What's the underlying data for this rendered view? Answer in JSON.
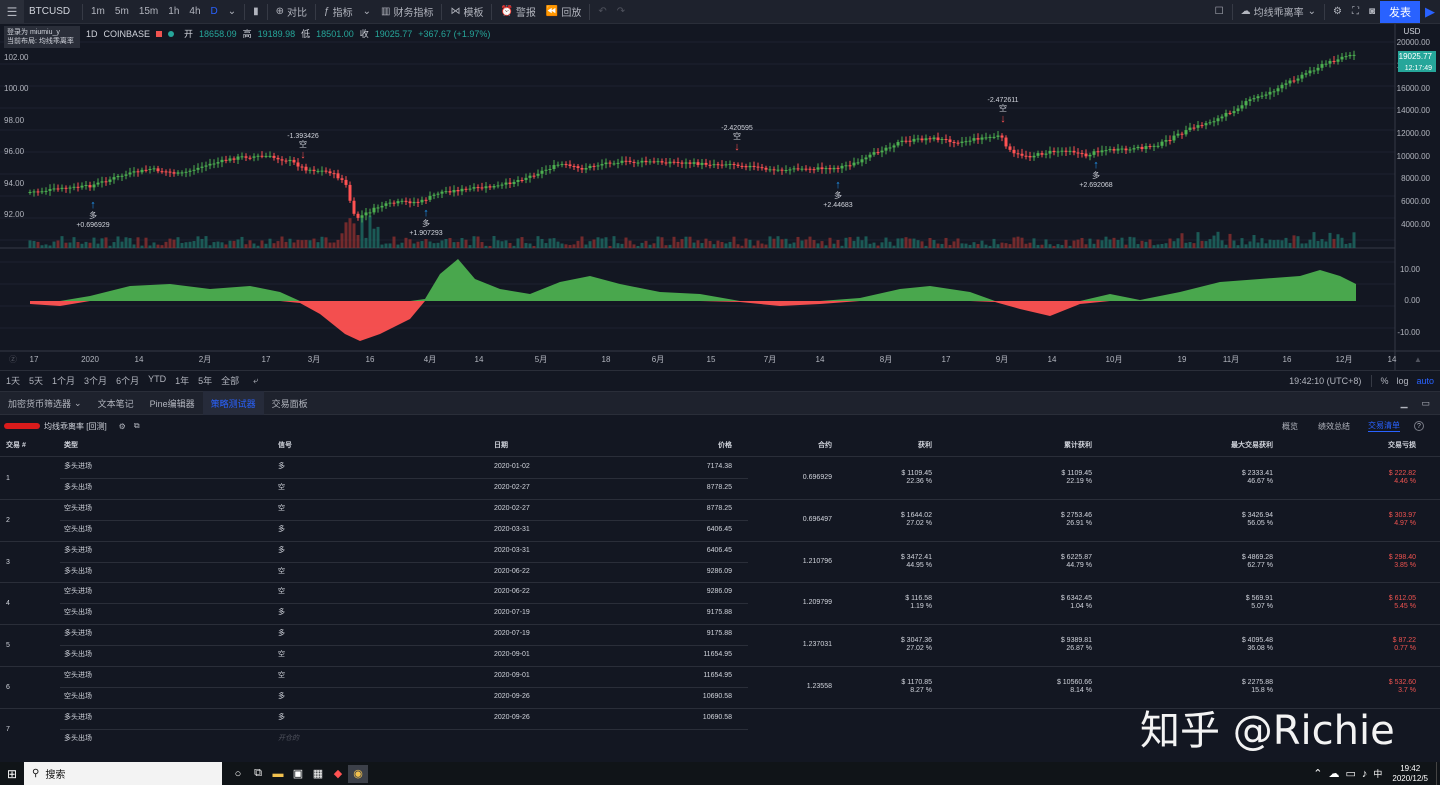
{
  "toolbar": {
    "symbol": "BTCUSD",
    "resolutions": [
      "1m",
      "5m",
      "15m",
      "1h",
      "4h",
      "D"
    ],
    "compare": "对比",
    "indicators": "指标",
    "financials": "财务指标",
    "templates": "模板",
    "alerts": "警报",
    "replay": "回放",
    "layout_name": "均线乖离率",
    "publish": "发表"
  },
  "login": {
    "line1": "登录为 miumiu_y",
    "line2": "当前布局: 均线乖离率"
  },
  "legend": {
    "interval": "1D",
    "exchange": "COINBASE",
    "o_label": "开",
    "o": "18658.09",
    "h_label": "高",
    "h": "19189.98",
    "l_label": "低",
    "l": "18501.00",
    "c_label": "收",
    "c": "19025.77",
    "chg": "+367.67 (+1.97%)"
  },
  "price_axis": {
    "currency": "USD",
    "current_price": "19025.77",
    "countdown": "12:17:49",
    "right_ticks": [
      "20000.00",
      "18000.00",
      "16000.00",
      "14000.00",
      "12000.00",
      "10000.00",
      "8000.00",
      "6000.00",
      "4000.00"
    ],
    "left_ticks": [
      "102.00",
      "100.00",
      "98.00",
      "96.00",
      "94.00",
      "92.00"
    ],
    "osc_ticks": [
      "10.00",
      "0.00",
      "-10.00"
    ]
  },
  "time_axis": [
    "17",
    "2020",
    "14",
    "2月",
    "17",
    "3月",
    "16",
    "4月",
    "14",
    "5月",
    "18",
    "6月",
    "15",
    "7月",
    "14",
    "8月",
    "17",
    "9月",
    "14",
    "10月",
    "19",
    "11月",
    "16",
    "12月",
    "14"
  ],
  "signals": [
    {
      "value": "+0.696929",
      "side": "多",
      "dir": "long"
    },
    {
      "value": "-1.393426",
      "side": "空",
      "dir": "short"
    },
    {
      "value": "+1.907293",
      "side": "多",
      "dir": "long"
    },
    {
      "value": "-2.420595",
      "side": "空",
      "dir": "short"
    },
    {
      "value": "+2.44683",
      "side": "多",
      "dir": "long"
    },
    {
      "value": "-2.472611",
      "side": "空",
      "dir": "short"
    },
    {
      "value": "+2.692068",
      "side": "多",
      "dir": "long"
    }
  ],
  "timeframes": {
    "ranges": [
      "1天",
      "5天",
      "1个月",
      "3个月",
      "6个月",
      "YTD",
      "1年",
      "5年",
      "全部"
    ],
    "clock": "19:42:10 (UTC+8)",
    "pct": "%",
    "log": "log",
    "auto": "auto"
  },
  "bottom_tabs": [
    "加密货币筛选器",
    "文本笔记",
    "Pine编辑器",
    "策略测试器",
    "交易面板"
  ],
  "strategy": {
    "name": "均线乖离率 [回测]",
    "views": [
      "概览",
      "绩效总结",
      "交易清单"
    ]
  },
  "table": {
    "headers": [
      "交易 #",
      "类型",
      "信号",
      "日期",
      "价格",
      "合约",
      "获利",
      "累计获利",
      "最大交易获利",
      "交易亏损"
    ],
    "trades": [
      {
        "no": "1",
        "entry_type": "多头进场",
        "entry_signal": "多",
        "entry_date": "2020-01-02",
        "entry_price": "7174.38",
        "exit_type": "多头出场",
        "exit_signal": "空",
        "exit_date": "2020-02-27",
        "exit_price": "8778.25",
        "contracts": "0.696929",
        "profit": "$ 1109.45",
        "profit_pct": "22.36 %",
        "cum": "$ 1109.45",
        "cum_pct": "22.19 %",
        "runup": "$ 2333.41",
        "runup_pct": "46.67 %",
        "dd": "$ 222.82",
        "dd_pct": "4.46 %"
      },
      {
        "no": "2",
        "entry_type": "空头进场",
        "entry_signal": "空",
        "entry_date": "2020-02-27",
        "entry_price": "8778.25",
        "exit_type": "空头出场",
        "exit_signal": "多",
        "exit_date": "2020-03-31",
        "exit_price": "6406.45",
        "contracts": "0.696497",
        "profit": "$ 1644.02",
        "profit_pct": "27.02 %",
        "cum": "$ 2753.46",
        "cum_pct": "26.91 %",
        "runup": "$ 3426.94",
        "runup_pct": "56.05 %",
        "dd": "$ 303.97",
        "dd_pct": "4.97 %"
      },
      {
        "no": "3",
        "entry_type": "多头进场",
        "entry_signal": "多",
        "entry_date": "2020-03-31",
        "entry_price": "6406.45",
        "exit_type": "多头出场",
        "exit_signal": "空",
        "exit_date": "2020-06-22",
        "exit_price": "9286.09",
        "contracts": "1.210796",
        "profit": "$ 3472.41",
        "profit_pct": "44.95 %",
        "cum": "$ 6225.87",
        "cum_pct": "44.79 %",
        "runup": "$ 4869.28",
        "runup_pct": "62.77 %",
        "dd": "$ 298.40",
        "dd_pct": "3.85 %"
      },
      {
        "no": "4",
        "entry_type": "空头进场",
        "entry_signal": "空",
        "entry_date": "2020-06-22",
        "entry_price": "9286.09",
        "exit_type": "空头出场",
        "exit_signal": "多",
        "exit_date": "2020-07-19",
        "exit_price": "9175.88",
        "contracts": "1.209799",
        "profit": "$ 116.58",
        "profit_pct": "1.19 %",
        "cum": "$ 6342.45",
        "cum_pct": "1.04 %",
        "runup": "$ 569.91",
        "runup_pct": "5.07 %",
        "dd": "$ 612.05",
        "dd_pct": "5.45 %"
      },
      {
        "no": "5",
        "entry_type": "多头进场",
        "entry_signal": "多",
        "entry_date": "2020-07-19",
        "entry_price": "9175.88",
        "exit_type": "多头出场",
        "exit_signal": "空",
        "exit_date": "2020-09-01",
        "exit_price": "11654.95",
        "contracts": "1.237031",
        "profit": "$ 3047.36",
        "profit_pct": "27.02 %",
        "cum": "$ 9389.81",
        "cum_pct": "26.87 %",
        "runup": "$ 4095.48",
        "runup_pct": "36.08 %",
        "dd": "$ 87.22",
        "dd_pct": "0.77 %"
      },
      {
        "no": "6",
        "entry_type": "空头进场",
        "entry_signal": "空",
        "entry_date": "2020-09-01",
        "entry_price": "11654.95",
        "exit_type": "空头出场",
        "exit_signal": "多",
        "exit_date": "2020-09-26",
        "exit_price": "10690.58",
        "contracts": "1.23558",
        "profit": "$ 1170.85",
        "profit_pct": "8.27 %",
        "cum": "$ 10560.66",
        "cum_pct": "8.14 %",
        "runup": "$ 2275.88",
        "runup_pct": "15.8 %",
        "dd": "$ 532.60",
        "dd_pct": "3.7 %"
      },
      {
        "no": "7",
        "entry_type": "多头进场",
        "entry_signal": "多",
        "entry_date": "2020-09-26",
        "entry_price": "10690.58",
        "exit_type": "多头出场",
        "exit_signal": "开仓的",
        "exit_date": "",
        "exit_price": "",
        "contracts": "",
        "profit": "",
        "profit_pct": "",
        "cum": "",
        "cum_pct": "",
        "runup": "",
        "runup_pct": "",
        "dd": "",
        "dd_pct": ""
      }
    ]
  },
  "taskbar": {
    "search": "搜索",
    "ime": "中",
    "time": "19:42",
    "date": "2020/12/5"
  },
  "watermark": "知乎 @Richie",
  "colors": {
    "bg": "#131722",
    "up": "#26a69a",
    "down": "#ef5350",
    "candle_up": "#4caf50",
    "candle_down": "#ff5252",
    "accent": "#2962ff"
  }
}
